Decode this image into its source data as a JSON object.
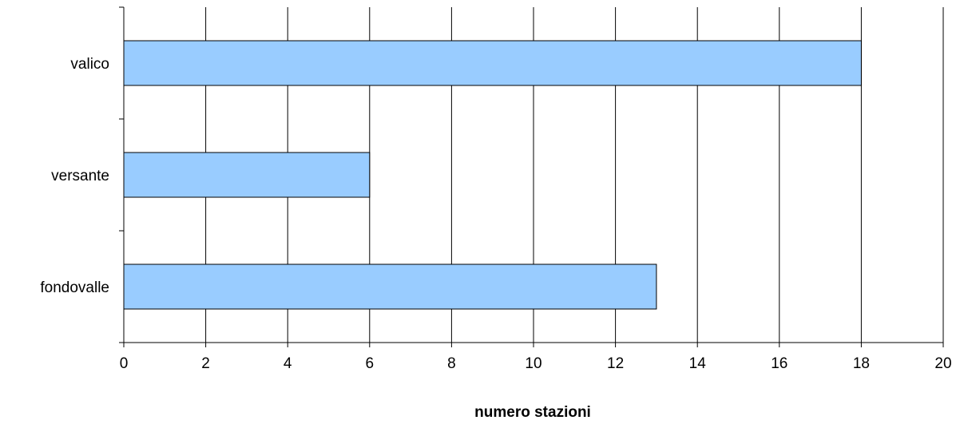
{
  "chart_data": {
    "type": "bar",
    "orientation": "horizontal",
    "categories": [
      "valico",
      "versante",
      "fondovalle"
    ],
    "values": [
      18,
      6,
      13
    ],
    "xlabel": "numero stazioni",
    "ylabel": "",
    "xlim": [
      0,
      20
    ],
    "xticks": [
      "0",
      "2",
      "4",
      "6",
      "8",
      "10",
      "12",
      "14",
      "16",
      "18",
      "20"
    ],
    "grid": "vertical",
    "legend": "none",
    "colors": {
      "bar": "#99ccff",
      "bar_edge": "#000000",
      "grid": "#000000"
    }
  }
}
